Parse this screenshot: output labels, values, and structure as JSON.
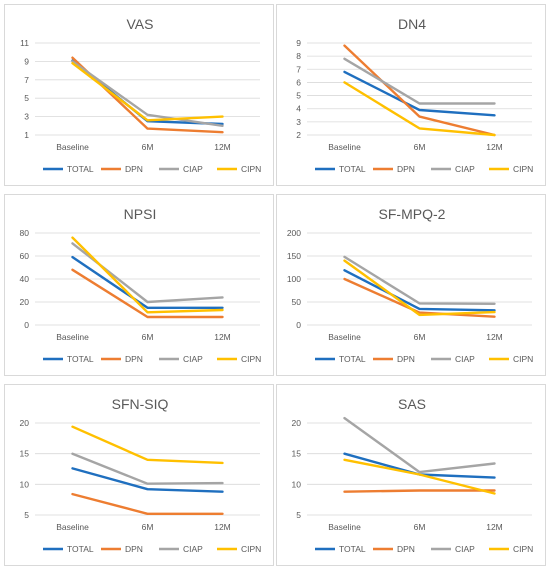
{
  "colors": {
    "TOTAL": "#1f6fbf",
    "DPN": "#ed7d31",
    "CIAP": "#a5a5a5",
    "CIPN": "#ffc000",
    "grid": "#d9d9d9",
    "text": "#595959"
  },
  "chart_data": [
    {
      "type": "line",
      "title": "VAS",
      "categories": [
        "Baseline",
        "6M",
        "12M"
      ],
      "yticks": [
        1,
        3,
        5,
        7,
        9,
        11
      ],
      "ylim": [
        1,
        11
      ],
      "series": [
        {
          "name": "TOTAL",
          "values": [
            9.1,
            2.5,
            2.2
          ]
        },
        {
          "name": "DPN",
          "values": [
            9.4,
            1.7,
            1.3
          ]
        },
        {
          "name": "CIAP",
          "values": [
            9.0,
            3.2,
            2.0
          ]
        },
        {
          "name": "CIPN",
          "values": [
            8.8,
            2.6,
            3.0
          ]
        }
      ],
      "legend": "bottom",
      "grid": true
    },
    {
      "type": "line",
      "title": "DN4",
      "categories": [
        "Baseline",
        "6M",
        "12M"
      ],
      "yticks": [
        2,
        3,
        4,
        5,
        6,
        7,
        8,
        9
      ],
      "ylim": [
        2,
        9
      ],
      "series": [
        {
          "name": "TOTAL",
          "values": [
            6.8,
            3.9,
            3.5
          ]
        },
        {
          "name": "DPN",
          "values": [
            8.8,
            3.4,
            2.0
          ]
        },
        {
          "name": "CIAP",
          "values": [
            7.8,
            4.4,
            4.4
          ]
        },
        {
          "name": "CIPN",
          "values": [
            6.0,
            2.5,
            2.0
          ]
        }
      ],
      "legend": "bottom",
      "grid": true
    },
    {
      "type": "line",
      "title": "NPSI",
      "categories": [
        "Baseline",
        "6M",
        "12M"
      ],
      "yticks": [
        0,
        20,
        40,
        60,
        80
      ],
      "ylim": [
        0,
        80
      ],
      "series": [
        {
          "name": "TOTAL",
          "values": [
            59,
            15,
            15
          ]
        },
        {
          "name": "DPN",
          "values": [
            48,
            7,
            7
          ]
        },
        {
          "name": "CIAP",
          "values": [
            71,
            20,
            24
          ]
        },
        {
          "name": "CIPN",
          "values": [
            76,
            11,
            13
          ]
        }
      ],
      "legend": "bottom",
      "grid": true
    },
    {
      "type": "line",
      "title": "SF-MPQ-2",
      "categories": [
        "Baseline",
        "6M",
        "12M"
      ],
      "yticks": [
        0,
        50,
        100,
        150,
        200
      ],
      "ylim": [
        0,
        200
      ],
      "series": [
        {
          "name": "TOTAL",
          "values": [
            119,
            35,
            32
          ]
        },
        {
          "name": "DPN",
          "values": [
            100,
            27,
            18
          ]
        },
        {
          "name": "CIAP",
          "values": [
            148,
            47,
            46
          ]
        },
        {
          "name": "CIPN",
          "values": [
            140,
            22,
            28
          ]
        }
      ],
      "legend": "bottom",
      "grid": true
    },
    {
      "type": "line",
      "title": "SFN-SIQ",
      "categories": [
        "Baseline",
        "6M",
        "12M"
      ],
      "yticks": [
        5,
        10,
        15,
        20
      ],
      "ylim": [
        5,
        20
      ],
      "series": [
        {
          "name": "TOTAL",
          "values": [
            12.6,
            9.2,
            8.8
          ]
        },
        {
          "name": "DPN",
          "values": [
            8.4,
            5.2,
            5.2
          ]
        },
        {
          "name": "CIAP",
          "values": [
            15.0,
            10.1,
            10.2
          ]
        },
        {
          "name": "CIPN",
          "values": [
            19.4,
            14.0,
            13.5
          ]
        }
      ],
      "legend": "bottom",
      "grid": true
    },
    {
      "type": "line",
      "title": "SAS",
      "categories": [
        "Baseline",
        "6M",
        "12M"
      ],
      "yticks": [
        5,
        10,
        15,
        20
      ],
      "ylim": [
        5,
        20
      ],
      "series": [
        {
          "name": "TOTAL",
          "values": [
            15.0,
            11.6,
            11.1
          ]
        },
        {
          "name": "DPN",
          "values": [
            8.8,
            9.0,
            9.0
          ]
        },
        {
          "name": "CIAP",
          "values": [
            20.8,
            12.0,
            13.4
          ]
        },
        {
          "name": "CIPN",
          "values": [
            14.0,
            11.6,
            8.5
          ]
        }
      ],
      "legend": "bottom",
      "grid": true
    }
  ]
}
